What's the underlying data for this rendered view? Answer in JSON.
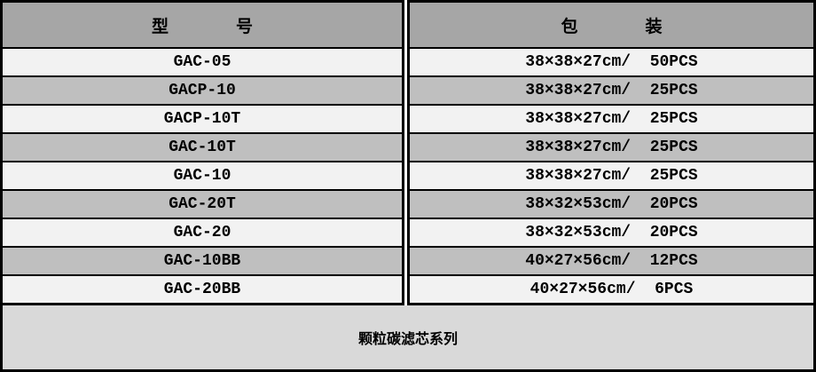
{
  "colors": {
    "header_bg": "#a6a6a6",
    "row_light": "#f2f2f2",
    "row_dark": "#bfbfbf",
    "footer_bg": "#d9d9d9",
    "border": "#000000",
    "gap": "#ffffff",
    "text": "#000000"
  },
  "table": {
    "model_header": "型　　　　号",
    "packaging_header": "包　　　　装",
    "rows": [
      {
        "model": "GAC-05",
        "packaging": "38×38×27cm/  50PCS"
      },
      {
        "model": "GACP-10",
        "packaging": "38×38×27cm/  25PCS"
      },
      {
        "model": "GACP-10T",
        "packaging": "38×38×27cm/  25PCS"
      },
      {
        "model": "GAC-10T",
        "packaging": "38×38×27cm/  25PCS"
      },
      {
        "model": "GAC-10",
        "packaging": "38×38×27cm/  25PCS"
      },
      {
        "model": "GAC-20T",
        "packaging": "38×32×53cm/  20PCS"
      },
      {
        "model": "GAC-20",
        "packaging": "38×32×53cm/  20PCS"
      },
      {
        "model": "GAC-10BB",
        "packaging": "40×27×56cm/  12PCS"
      },
      {
        "model": "GAC-20BB",
        "packaging": "40×27×56cm/  6PCS"
      }
    ],
    "footer": "颗粒碳滤芯系列"
  }
}
